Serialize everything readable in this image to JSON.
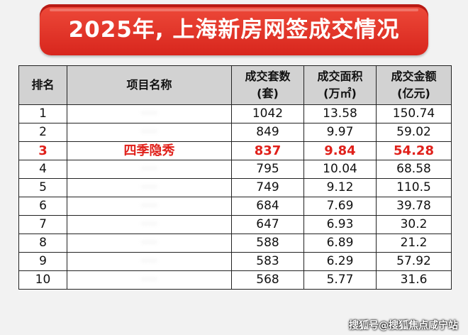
{
  "title": "2025年, 上海新房网签成交情况",
  "table": {
    "headers": [
      "排名",
      "项目名称",
      "成交套数\n(套)",
      "成交面积\n(万㎡)",
      "成交金额\n(亿元)"
    ],
    "rows": [
      {
        "rank": "1",
        "name": "·····",
        "units": "1042",
        "area": "13.58",
        "amount": "150.74",
        "highlight": false
      },
      {
        "rank": "2",
        "name": "·····",
        "units": "849",
        "area": "9.97",
        "amount": "59.02",
        "highlight": false
      },
      {
        "rank": "3",
        "name": "四季隐秀",
        "units": "837",
        "area": "9.84",
        "amount": "54.28",
        "highlight": true
      },
      {
        "rank": "4",
        "name": "·····",
        "units": "795",
        "area": "10.04",
        "amount": "68.58",
        "highlight": false
      },
      {
        "rank": "5",
        "name": "·····",
        "units": "749",
        "area": "9.12",
        "amount": "110.5",
        "highlight": false
      },
      {
        "rank": "6",
        "name": "·····",
        "units": "684",
        "area": "7.69",
        "amount": "39.78",
        "highlight": false
      },
      {
        "rank": "7",
        "name": "·····",
        "units": "647",
        "area": "6.93",
        "amount": "30.2",
        "highlight": false
      },
      {
        "rank": "8",
        "name": "·····",
        "units": "588",
        "area": "6.89",
        "amount": "21.2",
        "highlight": false
      },
      {
        "rank": "9",
        "name": "·····",
        "units": "583",
        "area": "6.29",
        "amount": "57.92",
        "highlight": false
      },
      {
        "rank": "10",
        "name": "·····",
        "units": "568",
        "area": "5.77",
        "amount": "31.6",
        "highlight": false
      }
    ]
  },
  "watermark": "搜狐号@搜狐焦点咸宁站",
  "colors": {
    "banner": "#d8261d",
    "highlight": "#e0201a",
    "header_bg": "#d2d2d2"
  }
}
